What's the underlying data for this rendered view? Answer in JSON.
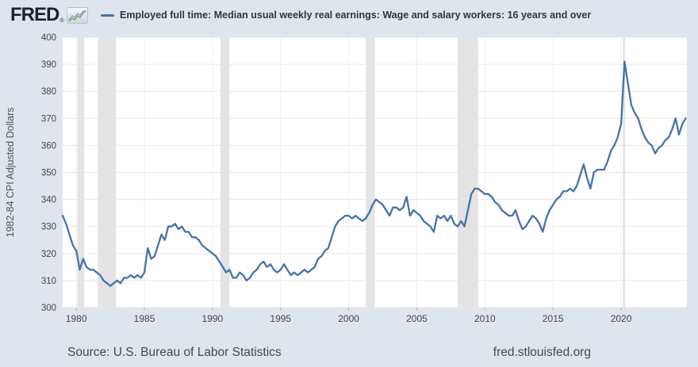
{
  "header": {
    "logo_text": "FRED",
    "registered_mark": "®",
    "legend": {
      "marker_color": "#4573a7",
      "series_label": "Employed full time: Median usual weekly real earnings: Wage and salary workers: 16 years and over"
    }
  },
  "footer": {
    "source": "Source: U.S. Bureau of Labor Statistics",
    "link": "fred.stlouisfed.org"
  },
  "chart_data": {
    "type": "line",
    "title": "Employed full time: Median usual weekly real earnings: Wage and salary workers: 16 years and over",
    "ylabel": "1982-84 CPI Adjusted Dollars",
    "xlabel": "",
    "ylim": [
      300,
      400
    ],
    "xlim": [
      1979.0,
      2024.83
    ],
    "y_ticks": [
      300,
      310,
      320,
      330,
      340,
      350,
      360,
      370,
      380,
      390,
      400
    ],
    "x_ticks": [
      1980,
      1985,
      1990,
      1995,
      2000,
      2005,
      2010,
      2015,
      2020
    ],
    "grid": true,
    "legend_position": "top",
    "frequency": "quarterly",
    "start_period": "1979 Q1",
    "end_period": "2024 Q4",
    "line_color": "#4573a7",
    "recession_band_color": "#e4e4e4",
    "recession_bands": [
      [
        1980.08,
        1980.58
      ],
      [
        1981.58,
        1982.92
      ],
      [
        1990.58,
        1991.25
      ],
      [
        2001.25,
        2001.92
      ],
      [
        2008.0,
        2009.5
      ],
      [
        2020.13,
        2020.3
      ]
    ],
    "values": [
      334,
      331,
      327,
      323,
      321,
      314,
      318,
      315,
      314,
      314,
      313,
      312,
      310,
      309,
      308,
      309,
      310,
      309,
      311,
      311,
      312,
      311,
      312,
      311,
      313,
      322,
      318,
      319,
      323,
      327,
      325,
      330,
      330,
      331,
      329,
      330,
      328,
      328,
      326,
      326,
      325,
      323,
      322,
      321,
      320,
      319,
      317,
      315,
      313,
      314,
      311,
      311,
      313,
      312,
      310,
      311,
      313,
      314,
      316,
      317,
      315,
      316,
      314,
      313,
      314,
      316,
      314,
      312,
      313,
      312,
      313,
      314,
      313,
      314,
      315,
      318,
      319,
      321,
      322,
      326,
      330,
      332,
      333,
      334,
      334,
      333,
      334,
      333,
      332,
      333,
      335,
      338,
      340,
      339,
      338,
      336,
      334,
      337,
      337,
      336,
      337,
      341,
      334,
      336,
      335,
      334,
      332,
      331,
      330,
      328,
      334,
      333,
      334,
      332,
      334,
      331,
      330,
      332,
      330,
      336,
      342,
      344,
      344,
      343,
      342,
      342,
      341,
      339,
      338,
      336,
      335,
      334,
      334,
      336,
      332,
      329,
      330,
      332,
      334,
      333,
      331,
      328,
      333,
      336,
      338,
      340,
      341,
      343,
      343,
      344,
      343,
      345,
      349,
      353,
      348,
      344,
      350,
      351,
      351,
      351,
      354,
      358,
      360,
      363,
      368,
      391,
      383,
      375,
      372,
      370,
      366,
      363,
      361,
      360,
      357,
      359,
      360,
      362,
      363,
      366,
      370,
      364,
      368,
      370
    ]
  }
}
